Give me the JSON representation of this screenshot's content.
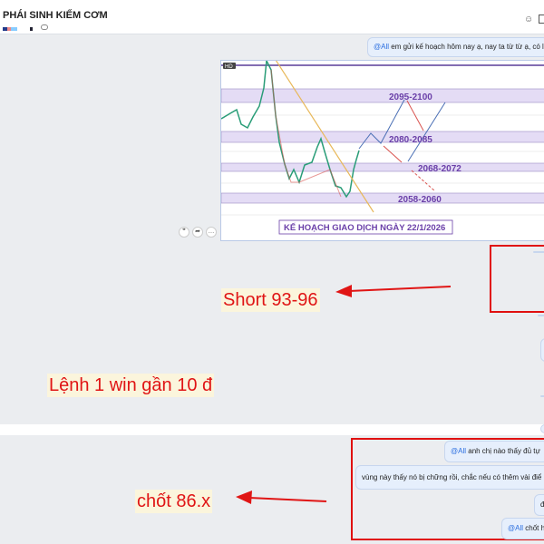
{
  "header": {
    "title": "PHÁI SINH KIẾM CƠM",
    "icons": [
      "add-member-icon",
      "layout-icon",
      "comment-icon"
    ]
  },
  "messages": {
    "top": {
      "mention": "@All",
      "text": " em gửi kế hoạch hôm nay ạ, nay ta từ từ ạ, có l"
    },
    "second_panel": [
      {
        "mention": "@All",
        "text": " anh chị nào thấy đủ tự"
      },
      {
        "mention": "",
        "text": "vùng này thấy nó bị chững rồi, chắc nếu có thêm vài điể"
      },
      {
        "mention": "",
        "text": "đ"
      },
      {
        "mention": "@All",
        "text": " chốt h"
      }
    ]
  },
  "chart_image": {
    "badge": "HD",
    "zones": [
      "2095-2100",
      "2080-2085",
      "2068-2072",
      "2058-2060"
    ],
    "plan_title": "KẾ HOẠCH GIAO DỊCH NGÀY 22/1/2026"
  },
  "reactions": [
    "quote-icon",
    "share-icon",
    "more-icon"
  ],
  "annotations": {
    "short": "Short 93-96",
    "win": "Lệnh 1 win gần 10 đ",
    "close": "chốt 86.x"
  },
  "colors": {
    "annotation": "#e01515",
    "zone": "#e4dcf5",
    "zone_text": "#6a3fa8",
    "mention": "#2a6ee0"
  }
}
